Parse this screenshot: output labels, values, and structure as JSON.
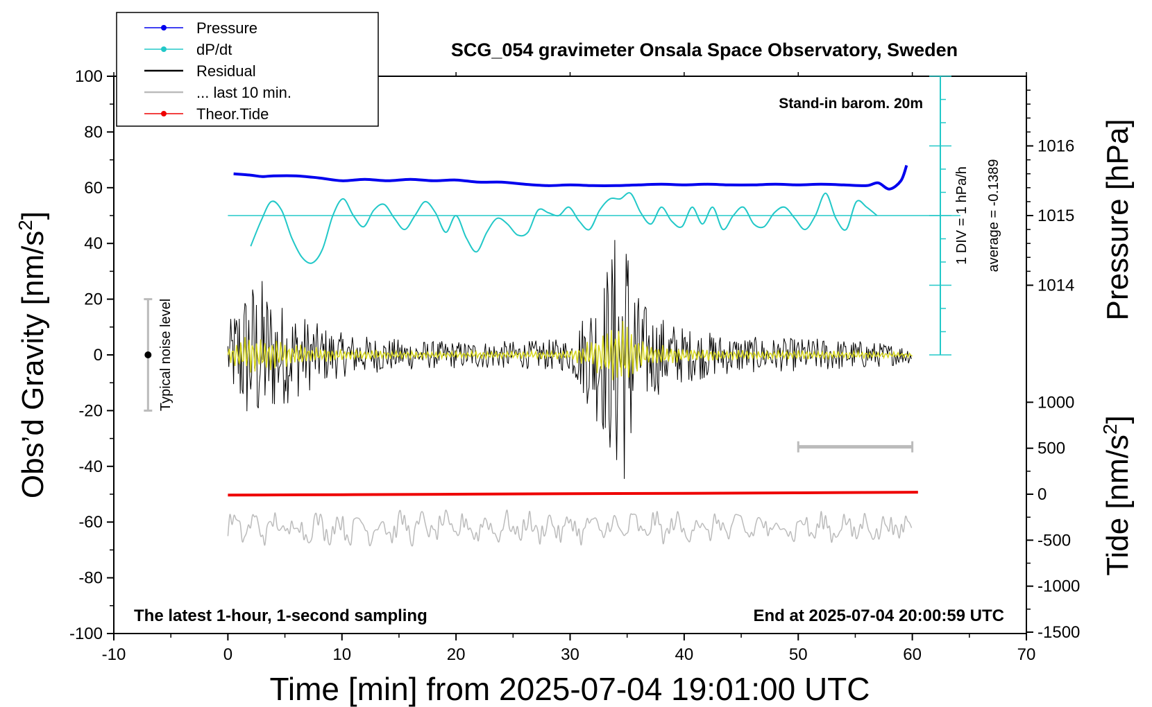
{
  "chart_data": {
    "type": "line",
    "title": "SCG_054 gravimeter Onsala Space Observatory, Sweden",
    "subtitle": "Stand-in barom. 20m",
    "xlabel": "Time [min] from 2025-07-04 19:01:00 UTC",
    "ylabel_left": "Obs’d Gravity [nm/s²]",
    "ylabel_left_base": "Obs’d Gravity [nm/s",
    "ylabel_left_sup": "2",
    "ylabel_left_end": "]",
    "ylabel_right_top": "Pressure [hPa]",
    "ylabel_right_bottom_base": "Tide [nm/s",
    "ylabel_right_bottom_sup": "2",
    "ylabel_right_bottom_end": "]",
    "xlim": [
      -10,
      70
    ],
    "ylim": [
      -100,
      100
    ],
    "x_ticks": [
      "-10",
      "0",
      "10",
      "20",
      "30",
      "40",
      "50",
      "60",
      "70"
    ],
    "y_ticks": [
      "100",
      "80",
      "60",
      "40",
      "20",
      "0",
      "-20",
      "-40",
      "-60",
      "-80",
      "-100"
    ],
    "pressure_ticks": [
      "1016",
      "1015",
      "1014"
    ],
    "tide_ticks": [
      "1000",
      "500",
      "0",
      "-500",
      "-1000",
      "-1500"
    ],
    "bottom_left_note": "The latest 1-hour, 1-second sampling",
    "bottom_right_note": "End at 2025-07-04 20:00:59 UTC",
    "dpdt_scale_label": "1 DIV = 1 hPa/h",
    "dpdt_average_label": "average = -0.1389",
    "noise_label": "Typical noise level",
    "legend": [
      {
        "label": "Pressure",
        "color": "#0000ee",
        "marker": true
      },
      {
        "label": "dP/dt",
        "color": "#22c8c8",
        "marker": true
      },
      {
        "label": "Residual",
        "color": "#000000",
        "marker": false
      },
      {
        "label": "... last 10 min.",
        "color": "#bbbbbb",
        "marker": false
      },
      {
        "label": "Theor.Tide",
        "color": "#ee0000",
        "marker": true
      }
    ],
    "colors": {
      "pressure": "#0000ee",
      "dpdt": "#22c8c8",
      "residual": "#000000",
      "residual_filtered": "#d8d820",
      "last10": "#bbbbbb",
      "tide": "#ee0000",
      "noise_bar": "#bbbbbb"
    },
    "series": [
      {
        "name": "Pressure",
        "unit": "hPa",
        "x": [
          0.5,
          2,
          3,
          4,
          6,
          8,
          10,
          12,
          14,
          16,
          18,
          20,
          22,
          24,
          26,
          28,
          30,
          32,
          34,
          36,
          38,
          40,
          42,
          44,
          46,
          48,
          50,
          52,
          54,
          56,
          57,
          58,
          59,
          59.5
        ],
        "values": [
          1015.6,
          1015.58,
          1015.56,
          1015.57,
          1015.57,
          1015.54,
          1015.5,
          1015.52,
          1015.5,
          1015.52,
          1015.5,
          1015.51,
          1015.48,
          1015.48,
          1015.45,
          1015.43,
          1015.44,
          1015.43,
          1015.43,
          1015.44,
          1015.45,
          1015.44,
          1015.45,
          1015.44,
          1015.44,
          1015.45,
          1015.44,
          1015.45,
          1015.44,
          1015.43,
          1015.47,
          1015.38,
          1015.5,
          1015.72
        ]
      },
      {
        "name": "dP/dt",
        "unit": "nm/s² plot units (1 DIV = 1 hPa/h, centered on average)",
        "x": [
          2,
          2.9,
          3.8,
          4.7,
          5.6,
          6.5,
          7.4,
          8.3,
          9.2,
          10.1,
          11,
          11.9,
          12.8,
          13.7,
          14.6,
          15.5,
          16.4,
          17.3,
          18.2,
          19.1,
          20,
          20.9,
          21.8,
          22.7,
          23.6,
          24.5,
          25.4,
          26.3,
          27.2,
          28.1,
          29,
          29.9,
          30.8,
          31.7,
          32.6,
          33.5,
          34.4,
          35.3,
          36.2,
          37.1,
          38,
          38.9,
          39.8,
          40.7,
          41.6,
          42.5,
          43.4,
          44.3,
          45.2,
          46.1,
          47,
          47.9,
          48.8,
          49.7,
          50.6,
          51.5,
          52.4,
          53.3,
          54.2,
          55.1,
          56,
          56.9
        ],
        "values": [
          39,
          48,
          55,
          52,
          42,
          35,
          33,
          38,
          50,
          56,
          50,
          46,
          52,
          54,
          49,
          45,
          50,
          55,
          51,
          44,
          50,
          42,
          37,
          44,
          49,
          47,
          43,
          44,
          52,
          51,
          50,
          53,
          48,
          45,
          52,
          56,
          56,
          58,
          51,
          47,
          53,
          48,
          46,
          53,
          47,
          53,
          45,
          50,
          53,
          47,
          46,
          51,
          53,
          49,
          45,
          50,
          58,
          49,
          45,
          55,
          53,
          50
        ]
      },
      {
        "name": "Theor.Tide",
        "unit": "nm/s²",
        "x": [
          0,
          10,
          20,
          30,
          40,
          50,
          60.5
        ],
        "values": [
          -10,
          -5,
          0,
          5,
          10,
          15,
          22
        ]
      }
    ],
    "residual_envelope": {
      "name": "Residual",
      "unit": "nm/s²",
      "x": [
        0,
        1,
        2,
        3,
        4,
        5,
        6,
        8,
        10,
        14,
        18,
        22,
        26,
        30,
        31,
        32,
        33,
        34,
        35,
        36,
        37,
        38,
        40,
        44,
        48,
        52,
        56,
        60
      ],
      "amplitude": [
        10,
        22,
        28,
        28,
        22,
        18,
        16,
        11,
        8,
        6,
        5,
        5,
        5,
        6,
        14,
        22,
        30,
        46,
        48,
        22,
        16,
        14,
        10,
        7,
        6,
        6,
        5,
        3
      ]
    },
    "last10": {
      "name": "... last 10 min.",
      "x_range": [
        0,
        60
      ],
      "baseline": -62,
      "amplitude_range": [
        -70,
        -52
      ]
    },
    "noise_indicator": {
      "x": -7,
      "center": 0,
      "range": [
        -20,
        20
      ]
    },
    "last10_bracket": {
      "x_range": [
        50,
        60
      ],
      "y": -33
    }
  }
}
